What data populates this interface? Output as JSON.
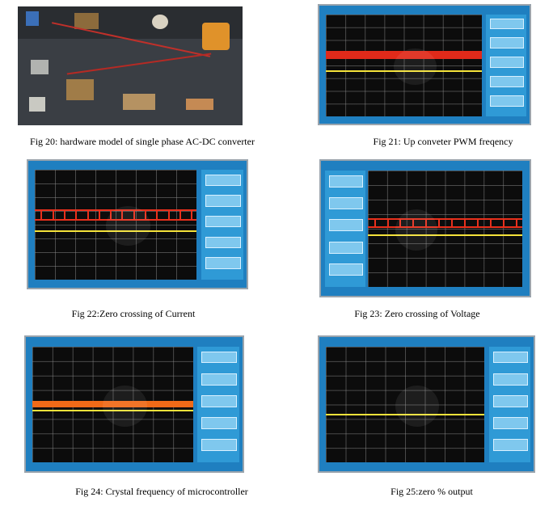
{
  "figures": [
    {
      "caption": "Fig 20: hardware model of single phase AC-DC converter"
    },
    {
      "caption": "Fig 21: Up conveter PWM freqency"
    },
    {
      "caption": "Fig 22:Zero crossing of Current"
    },
    {
      "caption": "Fig 23: Zero crossing of Voltage"
    },
    {
      "caption": "Fig 24: Crystal frequency of microcontroller"
    },
    {
      "caption": "Fig 25:zero % output"
    }
  ]
}
